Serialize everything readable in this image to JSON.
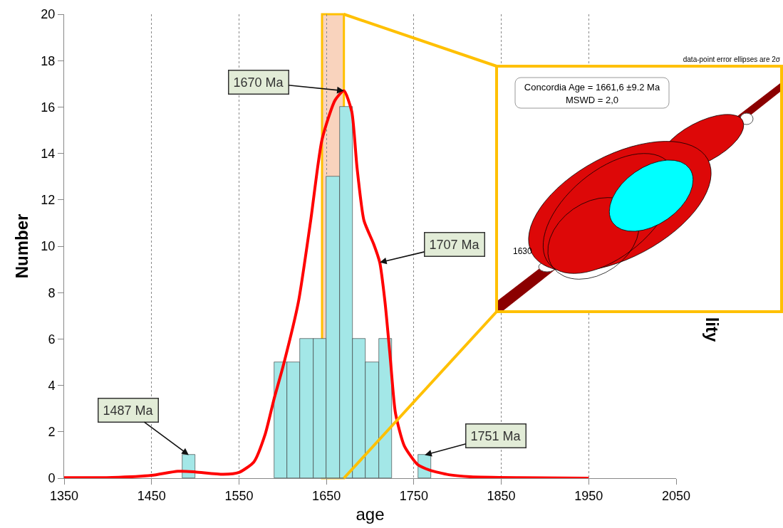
{
  "chart_data": {
    "type": "histogram",
    "xlabel": "age",
    "ylabel": "Number",
    "y2label": "lity",
    "xlim": [
      1350,
      2050
    ],
    "xticks": [
      1350,
      1450,
      1550,
      1650,
      1750,
      1850,
      1950,
      2050
    ],
    "ylim": [
      0,
      20
    ],
    "yticks": [
      0,
      2,
      4,
      6,
      8,
      10,
      12,
      14,
      16,
      18,
      20
    ],
    "grid": "x",
    "series": [
      {
        "color": "#a3e7e7",
        "bins": [
          1485,
          1500,
          1515,
          1530,
          1545,
          1560,
          1575,
          1590,
          1605,
          1620,
          1635,
          1650,
          1665,
          1680,
          1695,
          1710,
          1725,
          1740,
          1755,
          1770
        ],
        "values": [
          1,
          0,
          0,
          0,
          0,
          0,
          0,
          5,
          5,
          6,
          6,
          13,
          16,
          6,
          5,
          6,
          0,
          0,
          1
        ]
      },
      {
        "type": "line",
        "color": "#ff0000",
        "x": [
          1350,
          1405,
          1450,
          1480,
          1500,
          1532,
          1550,
          1567,
          1580,
          1590,
          1601,
          1618,
          1632,
          1645,
          1660,
          1670,
          1679,
          1685,
          1693,
          1704,
          1711,
          1717,
          1723,
          1729,
          1739,
          1754,
          1768,
          1790,
          1815,
          1870,
          1950
        ],
        "values": [
          0.02,
          0.03,
          0.12,
          0.3,
          0.27,
          0.17,
          0.25,
          0.7,
          1.9,
          3.4,
          4.9,
          7.6,
          11.1,
          14.6,
          16.3,
          16.7,
          15.8,
          13.4,
          11.1,
          10.1,
          9.3,
          7.6,
          5.2,
          2.8,
          1.4,
          0.6,
          0.35,
          0.15,
          0.06,
          0.02,
          0
        ]
      }
    ],
    "bands": [
      {
        "axis": "x",
        "from": 1645,
        "to": 1670,
        "color": "#f9d3bd"
      }
    ],
    "annotations": [
      {
        "text": "1670 Ma",
        "x": 1670,
        "y": 16.7
      },
      {
        "text": "1707 Ma",
        "x": 1711,
        "y": 9.3
      },
      {
        "text": "1487 Ma",
        "x": 1492.5,
        "y": 1
      },
      {
        "text": "1751 Ma",
        "x": 1762.5,
        "y": 1
      },
      "Concordia Age = 1661,6 ±9.2 Ma",
      "MSWD = 2,0",
      "1630",
      "data-point error ellipses are 2σ"
    ]
  }
}
